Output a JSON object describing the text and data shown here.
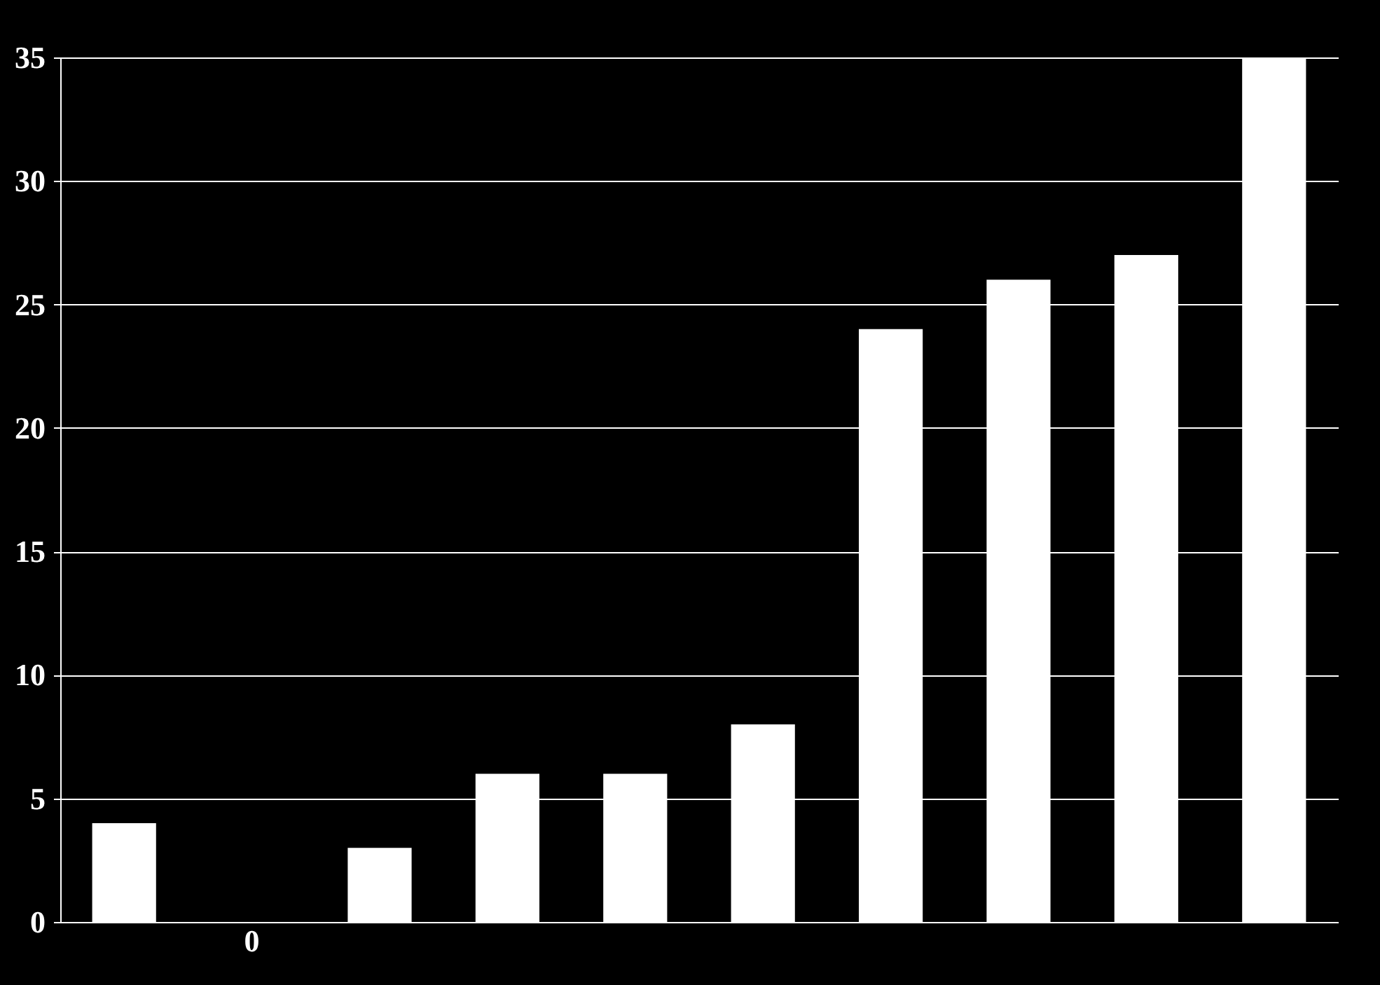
{
  "chart_data": {
    "type": "bar",
    "categories": [
      null,
      null,
      null,
      null,
      null,
      null,
      null,
      null,
      null,
      null
    ],
    "values": [
      4,
      0,
      3,
      6,
      6,
      8,
      24,
      26,
      27,
      35
    ],
    "value_labels": [
      null,
      "0",
      null,
      null,
      null,
      null,
      null,
      null,
      null,
      null
    ],
    "color": "#ffffff",
    "ylim": [
      0,
      35
    ],
    "yticks": [
      0,
      5,
      10,
      15,
      20,
      25,
      30,
      35
    ],
    "grid": "y",
    "tick_labels": "y"
  }
}
